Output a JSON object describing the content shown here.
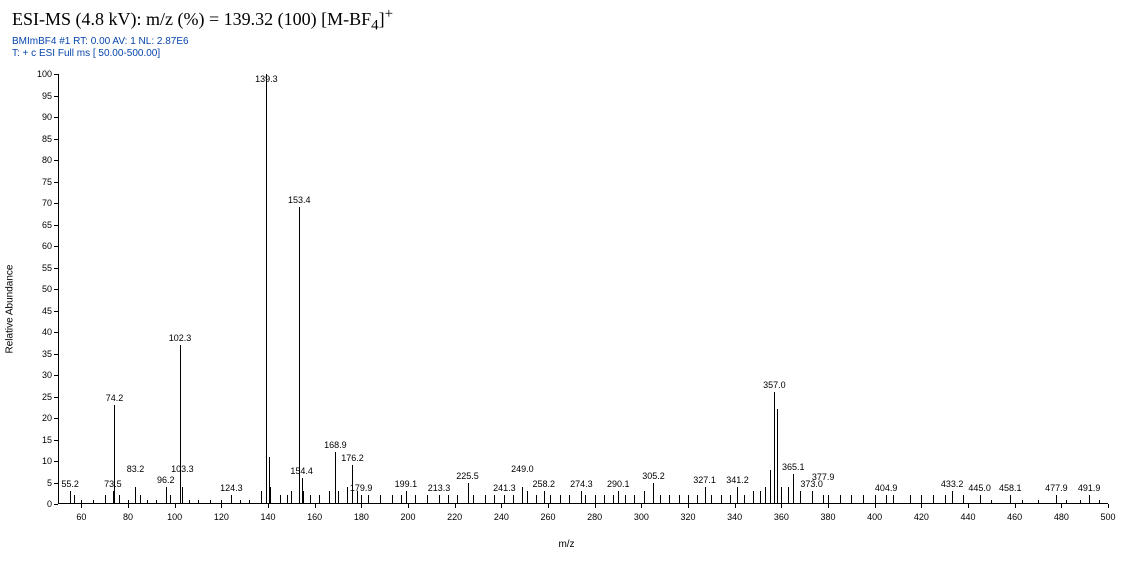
{
  "title_html": "ESI-MS (4.8 kV): m/z (%) = 139.32 (100) [M-BF<sub>4</sub>]<sup>+</sup>",
  "meta_line1": "BMImBF4 #1   RT: 0.00   AV: 1   NL: 2.87E6",
  "meta_line2": "T: + c ESI Full ms [ 50.00-500.00]",
  "spectrum": {
    "type": "mass-spectrum",
    "xlabel": "m/z",
    "ylabel": "Relative Abundance",
    "xlim": [
      50,
      500
    ],
    "ylim": [
      0,
      100
    ],
    "x_tick_step": 20,
    "y_tick_step": 5,
    "y_tick_label_step": 5,
    "background_color": "#ffffff",
    "axis_color": "#000000",
    "peak_color": "#000000",
    "peak_width": 1,
    "label_fontsize": 9,
    "axis_fontsize": 10,
    "labeled_peaks": [
      {
        "mz": 55.2,
        "intensity": 3
      },
      {
        "mz": 73.5,
        "intensity": 3
      },
      {
        "mz": 74.2,
        "intensity": 23
      },
      {
        "mz": 83.2,
        "intensity": 4
      },
      {
        "mz": 96.2,
        "intensity": 4
      },
      {
        "mz": 102.3,
        "intensity": 37
      },
      {
        "mz": 103.3,
        "intensity": 4
      },
      {
        "mz": 124.3,
        "intensity": 2
      },
      {
        "mz": 139.3,
        "intensity": 100
      },
      {
        "mz": 153.4,
        "intensity": 69
      },
      {
        "mz": 154.4,
        "intensity": 6
      },
      {
        "mz": 168.9,
        "intensity": 12
      },
      {
        "mz": 176.2,
        "intensity": 9
      },
      {
        "mz": 179.9,
        "intensity": 2
      },
      {
        "mz": 199.1,
        "intensity": 3
      },
      {
        "mz": 213.3,
        "intensity": 2
      },
      {
        "mz": 225.5,
        "intensity": 5
      },
      {
        "mz": 241.3,
        "intensity": 2
      },
      {
        "mz": 249.0,
        "intensity": 4
      },
      {
        "mz": 258.2,
        "intensity": 3
      },
      {
        "mz": 274.3,
        "intensity": 3
      },
      {
        "mz": 290.1,
        "intensity": 3
      },
      {
        "mz": 305.2,
        "intensity": 5
      },
      {
        "mz": 327.1,
        "intensity": 4
      },
      {
        "mz": 341.2,
        "intensity": 4
      },
      {
        "mz": 357.0,
        "intensity": 26
      },
      {
        "mz": 365.1,
        "intensity": 7
      },
      {
        "mz": 373.0,
        "intensity": 3
      },
      {
        "mz": 377.9,
        "intensity": 2
      },
      {
        "mz": 404.9,
        "intensity": 2
      },
      {
        "mz": 433.2,
        "intensity": 3
      },
      {
        "mz": 445.0,
        "intensity": 2
      },
      {
        "mz": 458.1,
        "intensity": 2
      },
      {
        "mz": 477.9,
        "intensity": 2
      },
      {
        "mz": 491.9,
        "intensity": 2
      }
    ],
    "minor_peaks": [
      {
        "mz": 57,
        "intensity": 2
      },
      {
        "mz": 60,
        "intensity": 1
      },
      {
        "mz": 65,
        "intensity": 1
      },
      {
        "mz": 70,
        "intensity": 2
      },
      {
        "mz": 76,
        "intensity": 2
      },
      {
        "mz": 80,
        "intensity": 1
      },
      {
        "mz": 85,
        "intensity": 2
      },
      {
        "mz": 88,
        "intensity": 1
      },
      {
        "mz": 92,
        "intensity": 1
      },
      {
        "mz": 98,
        "intensity": 2
      },
      {
        "mz": 106,
        "intensity": 1
      },
      {
        "mz": 110,
        "intensity": 1
      },
      {
        "mz": 115,
        "intensity": 1
      },
      {
        "mz": 120,
        "intensity": 1
      },
      {
        "mz": 128,
        "intensity": 1
      },
      {
        "mz": 132,
        "intensity": 1
      },
      {
        "mz": 137,
        "intensity": 3
      },
      {
        "mz": 140.3,
        "intensity": 11
      },
      {
        "mz": 141,
        "intensity": 4
      },
      {
        "mz": 145,
        "intensity": 2
      },
      {
        "mz": 148,
        "intensity": 2
      },
      {
        "mz": 150,
        "intensity": 3
      },
      {
        "mz": 155,
        "intensity": 3
      },
      {
        "mz": 158,
        "intensity": 2
      },
      {
        "mz": 162,
        "intensity": 2
      },
      {
        "mz": 166,
        "intensity": 3
      },
      {
        "mz": 170,
        "intensity": 3
      },
      {
        "mz": 174,
        "intensity": 4
      },
      {
        "mz": 178,
        "intensity": 3
      },
      {
        "mz": 183,
        "intensity": 2
      },
      {
        "mz": 188,
        "intensity": 2
      },
      {
        "mz": 193,
        "intensity": 2
      },
      {
        "mz": 197,
        "intensity": 2
      },
      {
        "mz": 203,
        "intensity": 2
      },
      {
        "mz": 208,
        "intensity": 2
      },
      {
        "mz": 217,
        "intensity": 2
      },
      {
        "mz": 221,
        "intensity": 2
      },
      {
        "mz": 228,
        "intensity": 2
      },
      {
        "mz": 233,
        "intensity": 2
      },
      {
        "mz": 237,
        "intensity": 2
      },
      {
        "mz": 245,
        "intensity": 2
      },
      {
        "mz": 251,
        "intensity": 3
      },
      {
        "mz": 255,
        "intensity": 2
      },
      {
        "mz": 261,
        "intensity": 2
      },
      {
        "mz": 265,
        "intensity": 2
      },
      {
        "mz": 269,
        "intensity": 2
      },
      {
        "mz": 276,
        "intensity": 2
      },
      {
        "mz": 280,
        "intensity": 2
      },
      {
        "mz": 284,
        "intensity": 2
      },
      {
        "mz": 288,
        "intensity": 2
      },
      {
        "mz": 293,
        "intensity": 2
      },
      {
        "mz": 297,
        "intensity": 2
      },
      {
        "mz": 301,
        "intensity": 3
      },
      {
        "mz": 308,
        "intensity": 2
      },
      {
        "mz": 312,
        "intensity": 2
      },
      {
        "mz": 316,
        "intensity": 2
      },
      {
        "mz": 320,
        "intensity": 2
      },
      {
        "mz": 324,
        "intensity": 2
      },
      {
        "mz": 330,
        "intensity": 2
      },
      {
        "mz": 334,
        "intensity": 2
      },
      {
        "mz": 338,
        "intensity": 2
      },
      {
        "mz": 344,
        "intensity": 2
      },
      {
        "mz": 348,
        "intensity": 3
      },
      {
        "mz": 351,
        "intensity": 3
      },
      {
        "mz": 353,
        "intensity": 4
      },
      {
        "mz": 355,
        "intensity": 8
      },
      {
        "mz": 358,
        "intensity": 22
      },
      {
        "mz": 360,
        "intensity": 4
      },
      {
        "mz": 363,
        "intensity": 4
      },
      {
        "mz": 368,
        "intensity": 3
      },
      {
        "mz": 380,
        "intensity": 2
      },
      {
        "mz": 385,
        "intensity": 2
      },
      {
        "mz": 390,
        "intensity": 2
      },
      {
        "mz": 395,
        "intensity": 2
      },
      {
        "mz": 400,
        "intensity": 2
      },
      {
        "mz": 408,
        "intensity": 2
      },
      {
        "mz": 415,
        "intensity": 2
      },
      {
        "mz": 420,
        "intensity": 2
      },
      {
        "mz": 425,
        "intensity": 2
      },
      {
        "mz": 430,
        "intensity": 2
      },
      {
        "mz": 438,
        "intensity": 2
      },
      {
        "mz": 450,
        "intensity": 1
      },
      {
        "mz": 463,
        "intensity": 1
      },
      {
        "mz": 470,
        "intensity": 1
      },
      {
        "mz": 482,
        "intensity": 1
      },
      {
        "mz": 488,
        "intensity": 1
      },
      {
        "mz": 496,
        "intensity": 1
      }
    ]
  }
}
